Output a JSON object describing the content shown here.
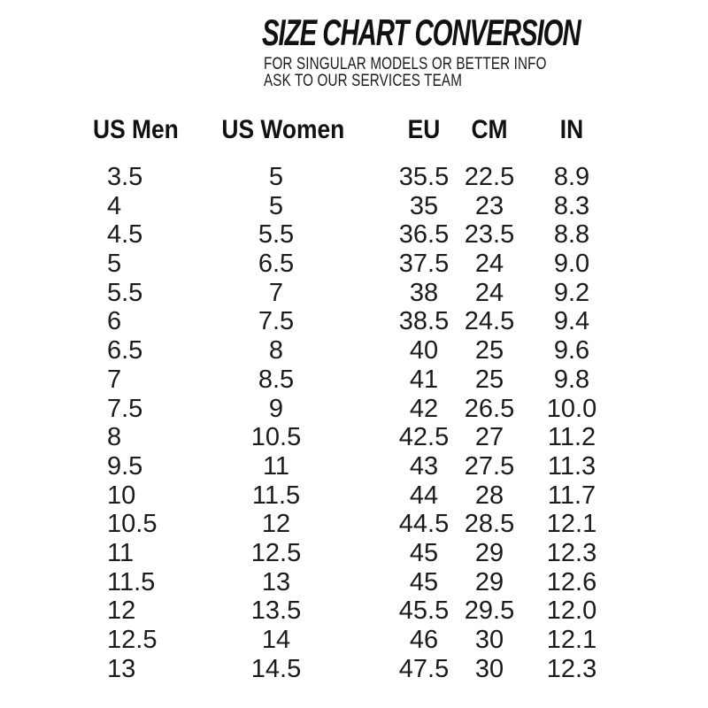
{
  "header": {
    "title": "SIZE CHART CONVERSION",
    "subtitle_line1": "FOR SINGULAR MODELS OR BETTER INFO",
    "subtitle_line2": "ASK TO OUR SERVICES TEAM"
  },
  "chart_data": {
    "type": "table",
    "title": "SIZE CHART CONVERSION",
    "columns": [
      "US Men",
      "US Women",
      "EU",
      "CM",
      "IN"
    ],
    "rows": [
      [
        "3.5",
        "5",
        "35.5",
        "22.5",
        "8.9"
      ],
      [
        "4",
        "5",
        "35",
        "23",
        "8.3"
      ],
      [
        "4.5",
        "5.5",
        "36.5",
        "23.5",
        "8.8"
      ],
      [
        "5",
        "6.5",
        "37.5",
        "24",
        "9.0"
      ],
      [
        "5.5",
        "7",
        "38",
        "24",
        "9.2"
      ],
      [
        "6",
        "7.5",
        "38.5",
        "24.5",
        "9.4"
      ],
      [
        "6.5",
        "8",
        "40",
        "25",
        "9.6"
      ],
      [
        "7",
        "8.5",
        "41",
        "25",
        "9.8"
      ],
      [
        "7.5",
        "9",
        "42",
        "26.5",
        "10.0"
      ],
      [
        "8",
        "10.5",
        "42.5",
        "27",
        "11.2"
      ],
      [
        "9.5",
        "11",
        "43",
        "27.5",
        "11.3"
      ],
      [
        "10",
        "11.5",
        "44",
        "28",
        "11.7"
      ],
      [
        "10.5",
        "12",
        "44.5",
        "28.5",
        "12.1"
      ],
      [
        "11",
        "12.5",
        "45",
        "29",
        "12.3"
      ],
      [
        "11.5",
        "13",
        "45",
        "29",
        "12.6"
      ],
      [
        "12",
        "13.5",
        "45.5",
        "29.5",
        "12.0"
      ],
      [
        "12.5",
        "14",
        "46",
        "30",
        "12.1"
      ],
      [
        "13",
        "14.5",
        "47.5",
        "30",
        "12.3"
      ]
    ],
    "layout": {
      "column_alignment": [
        "left",
        "center",
        "center",
        "center",
        "center"
      ],
      "grid": "off",
      "borders": "none"
    }
  },
  "colors": {
    "background": "#ffffff",
    "text": "#151515"
  }
}
